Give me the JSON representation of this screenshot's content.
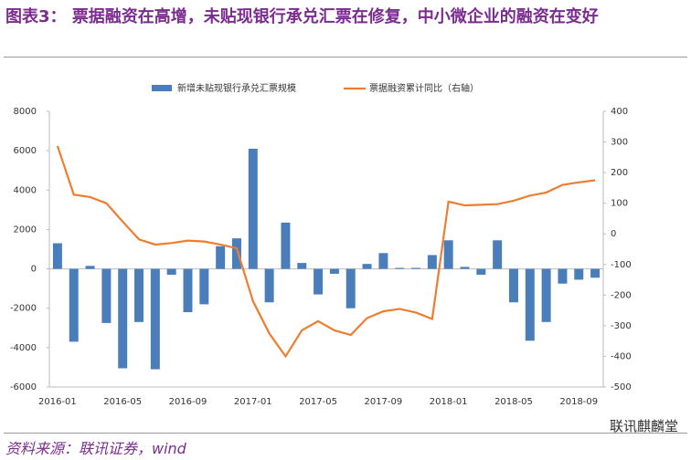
{
  "chart_data": {
    "type": "bar-line",
    "label": "图表3：",
    "title": "票据融资在高增，未贴现银行承兑汇票在修复，中小微企业的融资在变好",
    "source": "资料来源：联讯证券，wind",
    "logo": "联讯麒麟堂",
    "categories": [
      "2016-01",
      null,
      null,
      null,
      "2016-05",
      null,
      null,
      null,
      "2016-09",
      null,
      null,
      null,
      "2017-01",
      null,
      null,
      null,
      "2017-05",
      null,
      null,
      null,
      "2017-09",
      null,
      null,
      null,
      "2018-01",
      null,
      null,
      null,
      "2018-05",
      null,
      null,
      null,
      "2018-09",
      null
    ],
    "series": [
      {
        "name": "新增未贴现银行承兑汇票规模",
        "type": "bar",
        "color": "#4a7ebb",
        "values": [
          1300,
          -3700,
          150,
          -2750,
          -5050,
          -2700,
          -5100,
          -300,
          -2200,
          -1800,
          1150,
          1550,
          6100,
          -1700,
          2350,
          300,
          -1300,
          -250,
          -2000,
          250,
          800,
          50,
          50,
          700,
          1450,
          100,
          -300,
          1450,
          -1700,
          -3650,
          -2700,
          -750,
          -550,
          -450
        ]
      },
      {
        "name": "票据融资累计同比（右轴）",
        "type": "line",
        "axis": "y2",
        "color": "#ed7d31",
        "values": [
          287,
          128,
          120,
          100,
          40,
          -18,
          -35,
          -30,
          -22,
          -25,
          -35,
          -47,
          -220,
          -325,
          -400,
          -315,
          -285,
          -315,
          -330,
          -275,
          -253,
          -245,
          -257,
          -278,
          105,
          93,
          95,
          97,
          108,
          125,
          135,
          160,
          168,
          175
        ]
      }
    ],
    "ylim": [
      -6000,
      8000
    ],
    "yticks": [
      -6000,
      -4000,
      -2000,
      0,
      2000,
      4000,
      6000,
      8000
    ],
    "y2lim": [
      -500,
      400
    ],
    "y2ticks": [
      -500,
      -400,
      -300,
      -200,
      -100,
      0,
      100,
      200,
      300,
      400
    ],
    "legend": "top"
  }
}
